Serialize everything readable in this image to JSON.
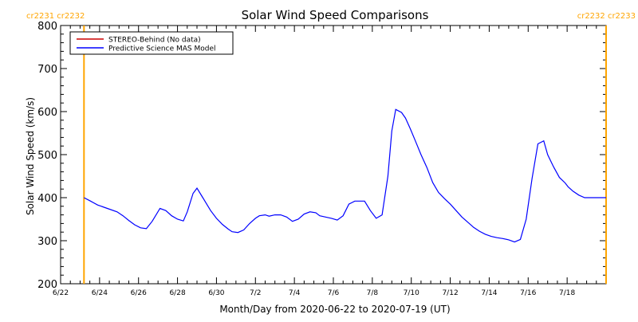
{
  "chart_data": {
    "type": "line",
    "title": "Solar Wind Speed Comparisons",
    "xlabel": "Month/Day from 2020-06-22 to 2020-07-19 (UT)",
    "ylabel": "Solar Wind Speed (km/s)",
    "ylim": [
      200,
      800
    ],
    "xlim_days": [
      0,
      28
    ],
    "y_ticks": [
      200,
      300,
      400,
      500,
      600,
      700,
      800
    ],
    "x_ticks": [
      {
        "day": 0,
        "label": "6/22"
      },
      {
        "day": 2,
        "label": "6/24"
      },
      {
        "day": 4,
        "label": "6/26"
      },
      {
        "day": 6,
        "label": "6/28"
      },
      {
        "day": 8,
        "label": "6/30"
      },
      {
        "day": 10,
        "label": "7/2"
      },
      {
        "day": 12,
        "label": "7/4"
      },
      {
        "day": 14,
        "label": "7/6"
      },
      {
        "day": 16,
        "label": "7/8"
      },
      {
        "day": 18,
        "label": "7/10"
      },
      {
        "day": 20,
        "label": "7/12"
      },
      {
        "day": 22,
        "label": "7/14"
      },
      {
        "day": 24,
        "label": "7/16"
      },
      {
        "day": 26,
        "label": "7/18"
      }
    ],
    "markers": [
      {
        "day": 1.2,
        "labels": [
          "cr2231",
          "cr2232"
        ],
        "color": "#ffa500",
        "label_side": "left"
      },
      {
        "day": 28.0,
        "labels": [
          "cr2232",
          "cr2233"
        ],
        "color": "#ffa500",
        "label_side": "right"
      }
    ],
    "legend": [
      {
        "name": "STEREO-Behind (No data)",
        "color": "#cc0000"
      },
      {
        "name": "Predictive Science MAS Model",
        "color": "#0000ff"
      }
    ],
    "legend_position": "top-left",
    "series": [
      {
        "name": "Predictive Science MAS Model",
        "color": "#0000ff",
        "x": [
          1.2,
          1.5,
          1.9,
          2.4,
          2.9,
          3.2,
          3.5,
          3.8,
          4.1,
          4.4,
          4.7,
          5.1,
          5.4,
          5.7,
          6.0,
          6.3,
          6.5,
          6.8,
          7.0,
          7.3,
          7.7,
          8.0,
          8.3,
          8.6,
          8.8,
          9.1,
          9.4,
          9.7,
          10.0,
          10.2,
          10.5,
          10.7,
          11.0,
          11.3,
          11.6,
          11.9,
          12.2,
          12.5,
          12.8,
          13.1,
          13.3,
          13.6,
          13.9,
          14.2,
          14.5,
          14.8,
          15.1,
          15.3,
          15.6,
          15.9,
          16.2,
          16.5,
          16.8,
          17.0,
          17.2,
          17.5,
          17.7,
          17.95,
          18.2,
          18.5,
          18.8,
          19.1,
          19.4,
          19.7,
          20.0,
          20.3,
          20.6,
          20.9,
          21.2,
          21.5,
          21.8,
          22.1,
          22.4,
          22.7,
          23.0,
          23.3,
          23.6,
          23.9,
          24.2,
          24.5,
          24.8,
          25.0,
          25.3,
          25.6,
          25.9,
          26.05,
          26.3,
          26.6,
          26.9,
          27.2,
          27.5,
          27.8,
          28.0
        ],
        "y": [
          400,
          393,
          383,
          375,
          367,
          358,
          347,
          337,
          330,
          328,
          345,
          375,
          370,
          358,
          350,
          346,
          367,
          410,
          422,
          400,
          370,
          352,
          338,
          327,
          321,
          319,
          325,
          340,
          352,
          358,
          360,
          357,
          360,
          360,
          355,
          345,
          350,
          362,
          367,
          365,
          358,
          355,
          352,
          348,
          358,
          385,
          392,
          392,
          392,
          370,
          352,
          360,
          450,
          555,
          605,
          598,
          585,
          560,
          533,
          500,
          470,
          435,
          412,
          398,
          385,
          370,
          355,
          343,
          331,
          322,
          315,
          310,
          307,
          305,
          302,
          297,
          303,
          350,
          445,
          525,
          532,
          500,
          472,
          447,
          434,
          425,
          415,
          406,
          400,
          400,
          400,
          400,
          400
        ]
      }
    ]
  }
}
